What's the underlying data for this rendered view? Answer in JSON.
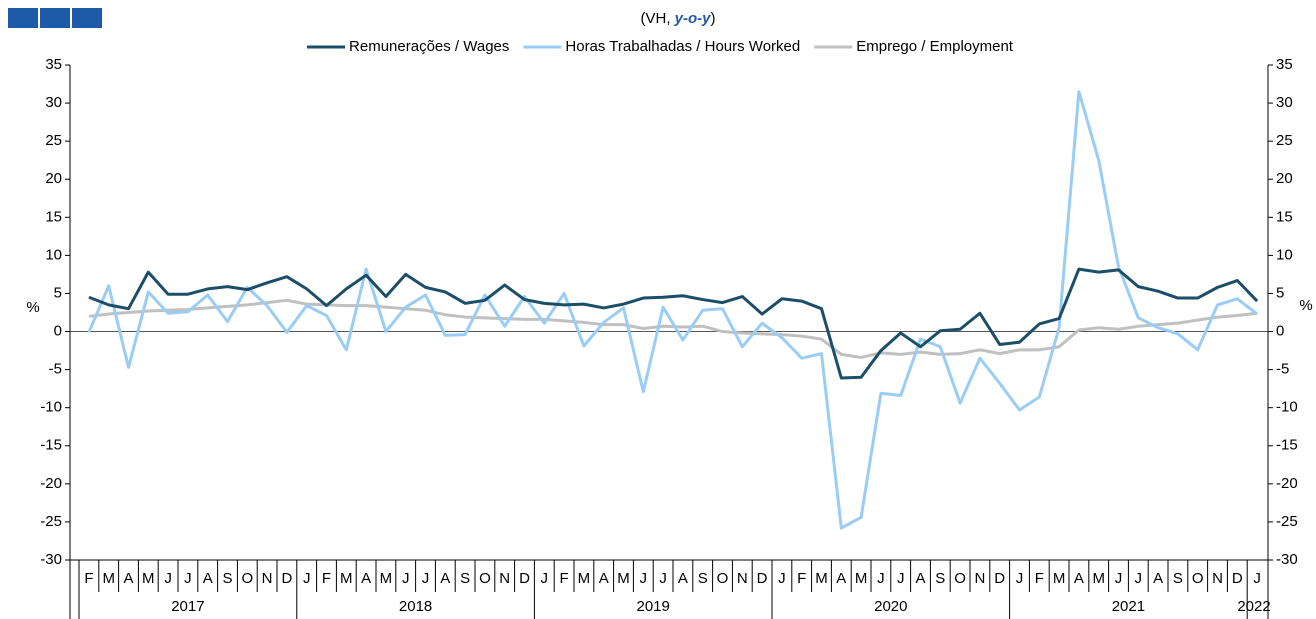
{
  "chart_data": {
    "type": "line",
    "subtitle_parts": [
      "(VH, ",
      "y-o-y",
      ")"
    ],
    "y_label": "%",
    "y2_label": "%",
    "categories": [
      "F",
      "M",
      "A",
      "M",
      "J",
      "J",
      "A",
      "S",
      "O",
      "N",
      "D",
      "J",
      "F",
      "M",
      "A",
      "M",
      "J",
      "J",
      "A",
      "S",
      "O",
      "N",
      "D",
      "J",
      "F",
      "M",
      "A",
      "M",
      "J",
      "J",
      "A",
      "S",
      "O",
      "N",
      "D",
      "J",
      "F",
      "M",
      "A",
      "M",
      "J",
      "J",
      "A",
      "S",
      "O",
      "N",
      "D",
      "J",
      "F",
      "M",
      "A",
      "M",
      "J",
      "J",
      "A",
      "S",
      "O",
      "N",
      "D",
      "J"
    ],
    "years": [
      "2017",
      "2018",
      "2019",
      "2020",
      "2021",
      "2022"
    ],
    "ylim": [
      -30,
      35
    ],
    "yticks": [
      -30,
      -25,
      -20,
      -15,
      -10,
      -5,
      0,
      5,
      10,
      15,
      20,
      25,
      30,
      35
    ],
    "y2lim": [
      -30,
      35
    ],
    "y2ticks": [
      -30,
      -25,
      -20,
      -15,
      -10,
      -5,
      0,
      5,
      10,
      15,
      20,
      25,
      30,
      35
    ],
    "legend": "top",
    "series": [
      {
        "name": "Remunerações / Wages",
        "color": "#1b4e68",
        "values": [
          4.5,
          3.5,
          3.0,
          7.8,
          4.9,
          4.9,
          5.6,
          5.9,
          5.5,
          6.4,
          7.2,
          5.6,
          3.4,
          5.6,
          7.4,
          4.6,
          7.5,
          5.8,
          5.2,
          3.7,
          4.1,
          6.1,
          4.2,
          3.7,
          3.5,
          3.6,
          3.1,
          3.6,
          4.4,
          4.5,
          4.7,
          4.2,
          3.8,
          4.6,
          2.3,
          4.3,
          4.0,
          3.0,
          -6.1,
          -6.0,
          -2.5,
          -0.2,
          -2.0,
          0.1,
          0.3,
          2.4,
          -1.7,
          -1.4,
          1.0,
          1.7,
          8.2,
          7.8,
          8.1,
          5.9,
          5.3,
          4.4,
          4.4,
          5.8,
          6.7,
          4.0
        ]
      },
      {
        "name": "Horas Trabalhadas / Hours Worked",
        "color": "#99cdf6",
        "values": [
          -0.1,
          6.0,
          -4.7,
          5.2,
          2.4,
          2.6,
          4.8,
          1.3,
          5.8,
          3.4,
          -0.1,
          3.4,
          2.1,
          -2.4,
          8.2,
          0.0,
          3.2,
          4.8,
          -0.5,
          -0.4,
          4.8,
          0.7,
          4.6,
          1.1,
          5.0,
          -1.9,
          1.2,
          3.1,
          -7.9,
          3.2,
          -1.1,
          2.8,
          3.0,
          -2.0,
          1.1,
          -0.8,
          -3.5,
          -2.9,
          -25.8,
          -24.4,
          -8.1,
          -8.4,
          -1.0,
          -2.0,
          -9.4,
          -3.5,
          -6.8,
          -10.3,
          -8.6,
          0.5,
          31.5,
          22.5,
          8.5,
          1.8,
          0.5,
          -0.3,
          -2.4,
          3.5,
          4.3,
          2.3
        ]
      },
      {
        "name": "Emprego / Employment",
        "color": "#c0c0c0",
        "values": [
          2.0,
          2.3,
          2.5,
          2.7,
          2.8,
          2.9,
          3.1,
          3.3,
          3.5,
          3.8,
          4.1,
          3.6,
          3.5,
          3.4,
          3.4,
          3.2,
          3.0,
          2.8,
          2.2,
          1.9,
          1.8,
          1.7,
          1.6,
          1.6,
          1.4,
          1.2,
          0.9,
          0.9,
          0.4,
          0.7,
          0.6,
          0.7,
          0.0,
          -0.2,
          -0.3,
          -0.4,
          -0.6,
          -1.0,
          -3.0,
          -3.4,
          -2.8,
          -3.0,
          -2.7,
          -3.0,
          -2.9,
          -2.4,
          -2.9,
          -2.4,
          -2.4,
          -2.0,
          0.2,
          0.5,
          0.3,
          0.7,
          0.9,
          1.1,
          1.5,
          1.9,
          2.1,
          2.4
        ]
      }
    ]
  }
}
